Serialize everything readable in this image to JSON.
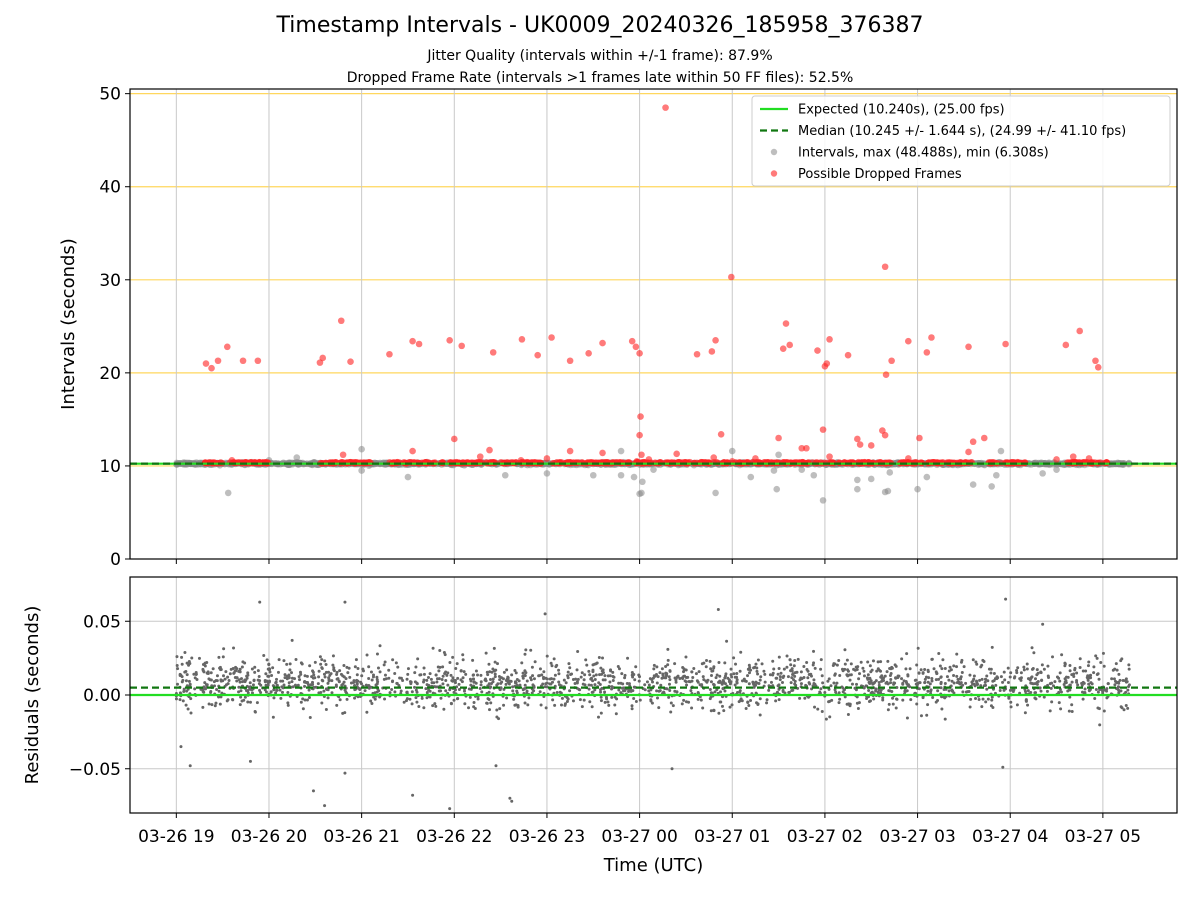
{
  "title": "Timestamp Intervals - UK0009_20240326_185958_376387",
  "subtitle_jitter": "Jitter Quality (intervals within +/-1 frame): 87.9%",
  "subtitle_dropped": "Dropped Frame Rate (intervals >1 frames late within 50 FF files): 52.5%",
  "colors": {
    "expected": "#22dd22",
    "median": "#117711",
    "intervals": "#888888",
    "dropped": "#ff2222",
    "hgrid_top": "#ffd75e",
    "grid": "#c8c8c8",
    "residual_points": "#666666"
  },
  "chart_data": [
    {
      "type": "scatter",
      "panel": "top",
      "xlabel": "",
      "ylabel": "Intervals (seconds)",
      "ylim": [
        0,
        50.5
      ],
      "yticks": [
        "0",
        "10",
        "20",
        "30",
        "40",
        "50"
      ],
      "grid": true,
      "expected_value": 10.24,
      "median_value": 10.245,
      "legend": {
        "position": "top-right",
        "entries": [
          "Expected (10.240s), (25.00 fps)",
          "Median (10.245 +/- 1.644 s), (24.99 +/- 41.10 fps)",
          "Intervals, max (48.488s), min (6.308s)",
          "Possible Dropped Frames"
        ]
      },
      "dropped_frames": [
        [
          19.32,
          21.0
        ],
        [
          19.38,
          20.5
        ],
        [
          19.45,
          21.3
        ],
        [
          19.55,
          22.8
        ],
        [
          19.72,
          21.3
        ],
        [
          19.88,
          21.3
        ],
        [
          20.55,
          21.1
        ],
        [
          20.58,
          21.6
        ],
        [
          20.78,
          25.6
        ],
        [
          20.88,
          21.2
        ],
        [
          21.3,
          22.0
        ],
        [
          21.55,
          23.4
        ],
        [
          21.62,
          23.1
        ],
        [
          21.95,
          23.5
        ],
        [
          22.08,
          22.9
        ],
        [
          22.42,
          22.2
        ],
        [
          22.73,
          23.6
        ],
        [
          22.9,
          21.9
        ],
        [
          23.05,
          23.8
        ],
        [
          23.25,
          21.3
        ],
        [
          23.45,
          22.1
        ],
        [
          23.6,
          23.2
        ],
        [
          23.92,
          23.4
        ],
        [
          23.96,
          22.8
        ],
        [
          24.0,
          22.1
        ],
        [
          24.28,
          48.5
        ],
        [
          24.62,
          22.0
        ],
        [
          24.78,
          22.3
        ],
        [
          24.82,
          23.5
        ],
        [
          24.99,
          30.3
        ],
        [
          25.55,
          22.6
        ],
        [
          25.58,
          25.3
        ],
        [
          25.62,
          23.0
        ],
        [
          25.92,
          22.4
        ],
        [
          26.0,
          20.7
        ],
        [
          26.02,
          21.0
        ],
        [
          26.05,
          23.6
        ],
        [
          26.25,
          21.9
        ],
        [
          26.65,
          31.4
        ],
        [
          26.66,
          19.8
        ],
        [
          26.72,
          21.3
        ],
        [
          26.9,
          23.4
        ],
        [
          27.1,
          22.2
        ],
        [
          27.15,
          23.8
        ],
        [
          27.55,
          22.8
        ],
        [
          27.95,
          23.1
        ],
        [
          28.6,
          23.0
        ],
        [
          28.75,
          24.5
        ],
        [
          28.92,
          21.3
        ],
        [
          28.95,
          20.6
        ],
        [
          19.6,
          10.6
        ],
        [
          20.8,
          11.2
        ],
        [
          21.55,
          11.6
        ],
        [
          22.0,
          12.9
        ],
        [
          22.28,
          11.0
        ],
        [
          22.38,
          11.7
        ],
        [
          22.72,
          10.6
        ],
        [
          23.0,
          10.8
        ],
        [
          23.25,
          11.6
        ],
        [
          23.6,
          11.4
        ],
        [
          23.97,
          10.5
        ],
        [
          24.0,
          13.3
        ],
        [
          24.01,
          15.3
        ],
        [
          24.02,
          11.2
        ],
        [
          24.1,
          10.7
        ],
        [
          24.4,
          11.3
        ],
        [
          24.8,
          10.9
        ],
        [
          24.88,
          13.4
        ],
        [
          25.0,
          10.5
        ],
        [
          25.25,
          10.8
        ],
        [
          25.5,
          13.0
        ],
        [
          25.75,
          11.9
        ],
        [
          25.8,
          11.9
        ],
        [
          25.98,
          13.9
        ],
        [
          26.05,
          11.0
        ],
        [
          26.35,
          12.9
        ],
        [
          26.38,
          12.3
        ],
        [
          26.5,
          12.2
        ],
        [
          26.62,
          13.8
        ],
        [
          26.65,
          13.3
        ],
        [
          26.9,
          10.8
        ],
        [
          27.02,
          13.0
        ],
        [
          27.55,
          11.5
        ],
        [
          27.6,
          12.6
        ],
        [
          27.72,
          13.0
        ],
        [
          28.5,
          10.7
        ],
        [
          28.68,
          11.0
        ],
        [
          28.85,
          10.8
        ]
      ],
      "dropped_clusters": [
        [
          19.3,
          20.0
        ],
        [
          20.55,
          21.1
        ],
        [
          21.3,
          21.8
        ],
        [
          21.85,
          22.45
        ],
        [
          22.5,
          22.95
        ],
        [
          23.05,
          23.9
        ],
        [
          23.95,
          24.95
        ],
        [
          25.0,
          25.6
        ],
        [
          25.62,
          26.1
        ],
        [
          26.15,
          27.05
        ],
        [
          27.1,
          27.6
        ],
        [
          27.75,
          28.2
        ],
        [
          28.6,
          29.05
        ]
      ],
      "intervals_outliers": [
        [
          19.56,
          7.1
        ],
        [
          23.94,
          8.8
        ],
        [
          24.0,
          7.0
        ],
        [
          24.02,
          7.1
        ],
        [
          24.03,
          8.3
        ],
        [
          24.15,
          9.6
        ],
        [
          24.82,
          7.1
        ],
        [
          25.2,
          8.8
        ],
        [
          25.48,
          7.5
        ],
        [
          25.45,
          9.5
        ],
        [
          25.88,
          9.0
        ],
        [
          25.98,
          6.3
        ],
        [
          26.35,
          7.5
        ],
        [
          26.35,
          8.5
        ],
        [
          26.5,
          8.6
        ],
        [
          26.65,
          7.2
        ],
        [
          26.68,
          7.3
        ],
        [
          26.7,
          9.3
        ],
        [
          27.0,
          7.5
        ],
        [
          27.1,
          8.8
        ],
        [
          27.6,
          8.0
        ],
        [
          27.8,
          7.8
        ],
        [
          27.85,
          9.0
        ],
        [
          28.35,
          9.2
        ],
        [
          21.0,
          9.5
        ],
        [
          21.0,
          11.8
        ],
        [
          21.5,
          8.8
        ],
        [
          22.55,
          9.0
        ],
        [
          23.0,
          9.2
        ],
        [
          23.5,
          9.0
        ],
        [
          23.8,
          9.0
        ],
        [
          23.8,
          11.6
        ],
        [
          25.0,
          11.6
        ],
        [
          25.5,
          11.2
        ],
        [
          25.75,
          9.6
        ],
        [
          27.9,
          11.6
        ],
        [
          28.5,
          9.6
        ],
        [
          20.3,
          10.9
        ],
        [
          20.0,
          10.6
        ]
      ]
    },
    {
      "type": "scatter",
      "panel": "bottom",
      "xlabel": "Time (UTC)",
      "ylabel": "Residuals (seconds)",
      "ylim": [
        -0.08,
        0.08
      ],
      "yticks": [
        "0.05",
        "0.00",
        "−0.05"
      ],
      "xlim": [
        18.5,
        29.8
      ],
      "xtick_hours": [
        19,
        20,
        21,
        22,
        23,
        24,
        25,
        26,
        27,
        28,
        29
      ],
      "xticks": [
        "03-26 19",
        "03-26 20",
        "03-26 21",
        "03-26 22",
        "03-26 23",
        "03-27 00",
        "03-27 01",
        "03-27 02",
        "03-27 03",
        "03-27 04",
        "03-27 05"
      ],
      "expected_value": 0.0,
      "median_value": 0.005,
      "time_range": [
        19.0,
        29.3
      ],
      "residual_outliers": [
        [
          19.05,
          -0.035
        ],
        [
          19.15,
          -0.048
        ],
        [
          19.8,
          -0.045
        ],
        [
          19.9,
          0.063
        ],
        [
          20.25,
          0.037
        ],
        [
          20.48,
          -0.065
        ],
        [
          20.6,
          -0.075
        ],
        [
          20.82,
          0.063
        ],
        [
          20.82,
          -0.053
        ],
        [
          21.55,
          -0.068
        ],
        [
          21.95,
          -0.077
        ],
        [
          22.6,
          -0.07
        ],
        [
          22.62,
          -0.072
        ],
        [
          22.45,
          -0.048
        ],
        [
          22.98,
          0.055
        ],
        [
          24.35,
          -0.05
        ],
        [
          24.85,
          0.058
        ],
        [
          27.92,
          -0.049
        ],
        [
          27.95,
          0.065
        ],
        [
          28.35,
          0.048
        ]
      ]
    }
  ]
}
